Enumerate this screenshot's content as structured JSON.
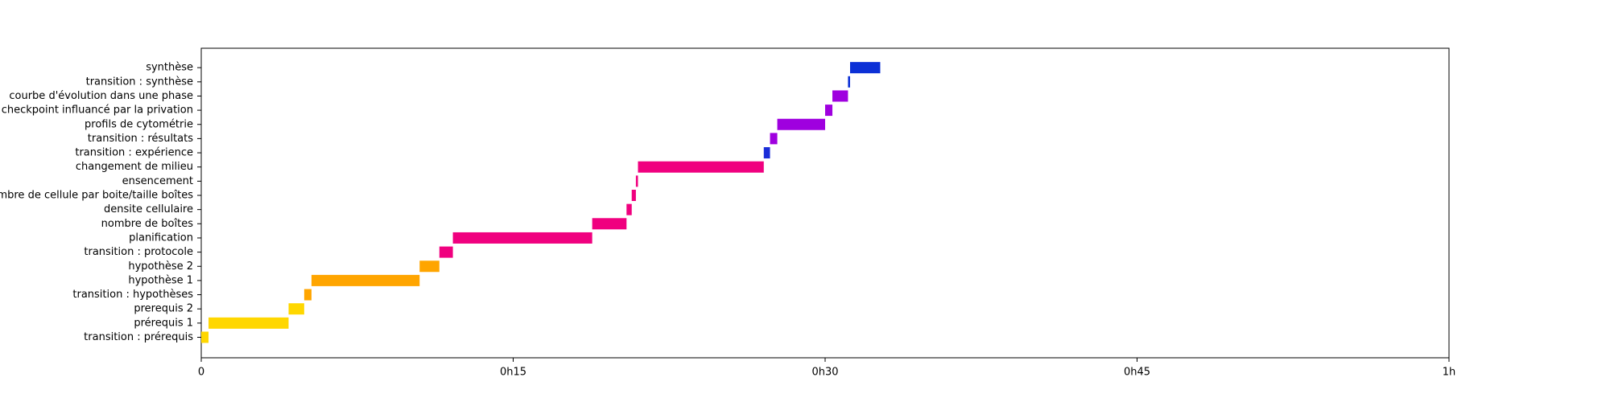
{
  "chart_data": {
    "type": "gantt",
    "title": "",
    "xlabel": "",
    "ylabel": "",
    "xlim": [
      0,
      60
    ],
    "x_unit": "minutes",
    "x_ticks": [
      {
        "value": 0,
        "label": "0"
      },
      {
        "value": 15,
        "label": "0h15"
      },
      {
        "value": 30,
        "label": "0h30"
      },
      {
        "value": 45,
        "label": "0h45"
      },
      {
        "value": 60,
        "label": "1h"
      }
    ],
    "grid": false,
    "tasks": [
      {
        "label": "transition : prérequis",
        "start": 0.0,
        "end": 0.35,
        "color": "#FFD700"
      },
      {
        "label": "prérequis 1",
        "start": 0.35,
        "end": 4.2,
        "color": "#FFD700"
      },
      {
        "label": "prerequis 2",
        "start": 4.2,
        "end": 4.95,
        "color": "#FFD700"
      },
      {
        "label": "transition : hypothèses",
        "start": 4.95,
        "end": 5.3,
        "color": "#FFA500"
      },
      {
        "label": "hypothèse 1",
        "start": 5.3,
        "end": 10.5,
        "color": "#FFA500"
      },
      {
        "label": "hypothèse 2",
        "start": 10.5,
        "end": 11.45,
        "color": "#FFA500"
      },
      {
        "label": "transition : protocole",
        "start": 11.45,
        "end": 12.1,
        "color": "#F0007F"
      },
      {
        "label": "planification",
        "start": 12.1,
        "end": 18.8,
        "color": "#F0007F"
      },
      {
        "label": "nombre de boîtes",
        "start": 18.8,
        "end": 20.45,
        "color": "#F0007F"
      },
      {
        "label": "densite cellulaire",
        "start": 20.45,
        "end": 20.7,
        "color": "#F0007F"
      },
      {
        "label": "nombre de cellule par boite/taille boîtes",
        "start": 20.7,
        "end": 20.9,
        "color": "#F0007F"
      },
      {
        "label": "ensencement",
        "start": 20.9,
        "end": 21.0,
        "color": "#F0007F"
      },
      {
        "label": "changement de milieu",
        "start": 21.0,
        "end": 27.05,
        "color": "#F0007F"
      },
      {
        "label": "transition : expérience",
        "start": 27.05,
        "end": 27.35,
        "color": "#1A2DD8"
      },
      {
        "label": "transition : résultats",
        "start": 27.35,
        "end": 27.7,
        "color": "#9F00DF"
      },
      {
        "label": "profils de cytométrie",
        "start": 27.7,
        "end": 30.0,
        "color": "#9F00DF"
      },
      {
        "label": "checkpoint influancé par la privation",
        "start": 30.0,
        "end": 30.35,
        "color": "#9F00DF"
      },
      {
        "label": "courbe d'évolution dans une phase",
        "start": 30.35,
        "end": 31.1,
        "color": "#9F00DF"
      },
      {
        "label": "transition : synthèse",
        "start": 31.1,
        "end": 31.2,
        "color": "#0C30D6"
      },
      {
        "label": "synthèse",
        "start": 31.2,
        "end": 32.65,
        "color": "#0C30D6"
      }
    ]
  }
}
